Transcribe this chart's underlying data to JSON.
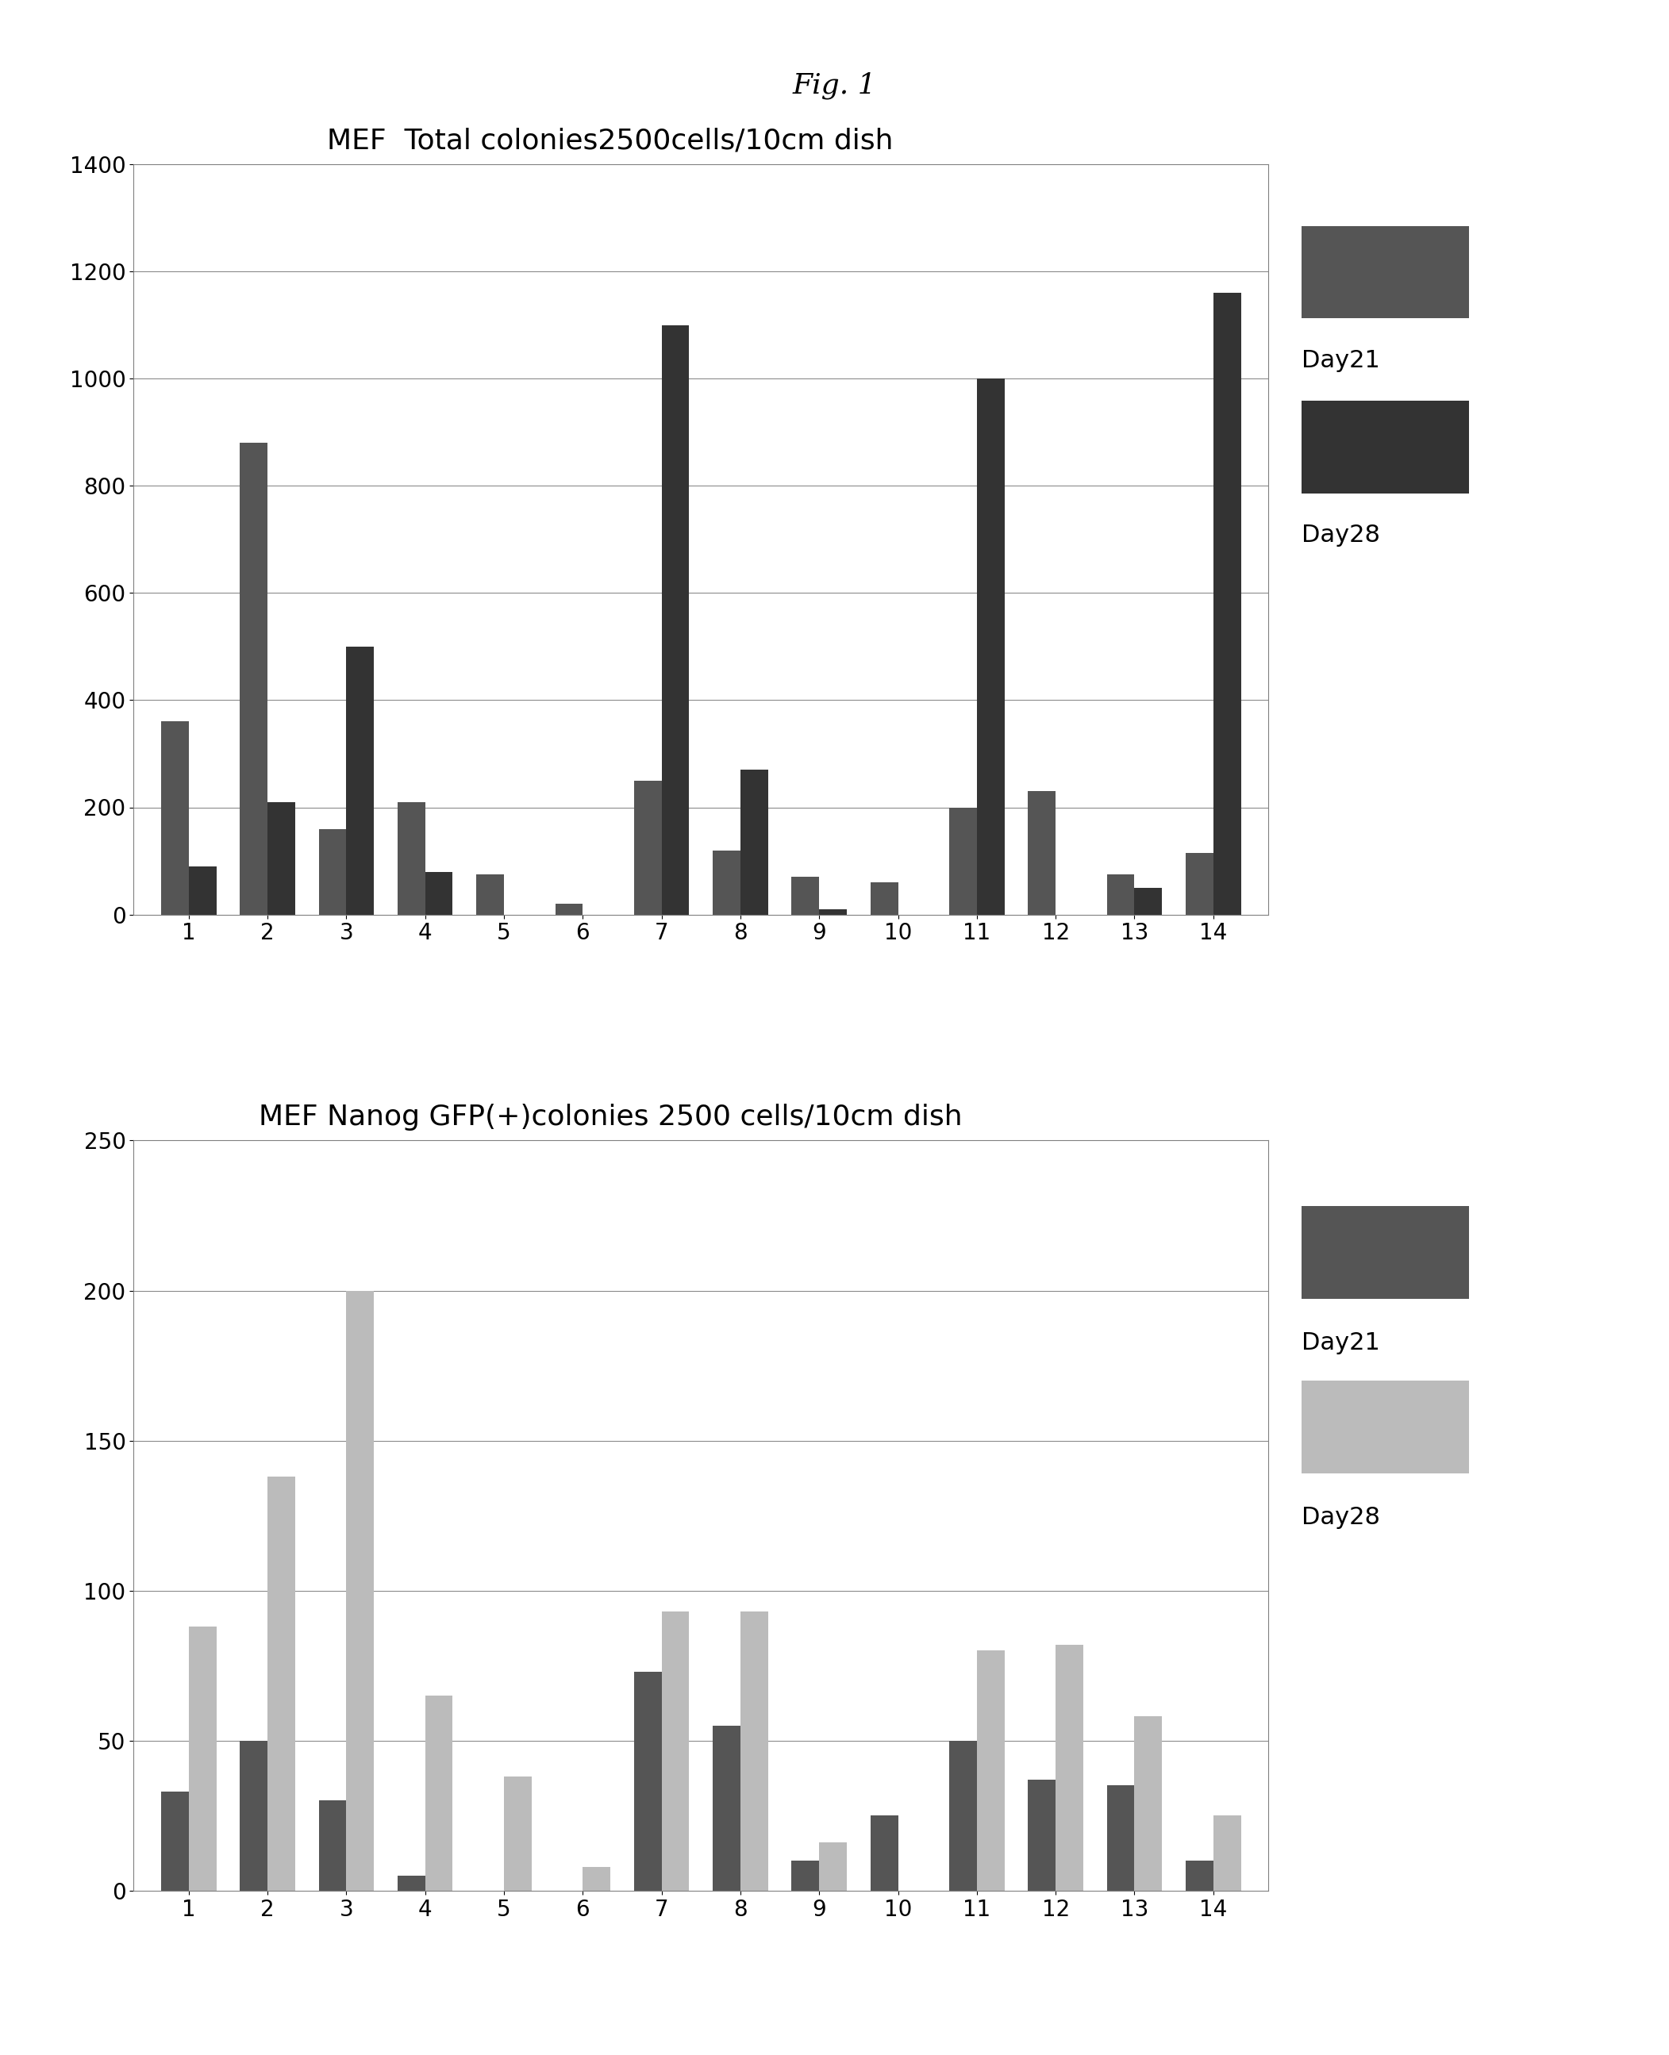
{
  "fig_title": "Fig. 1",
  "chart1": {
    "title": "MEF  Total colonies2500cells/10cm dish",
    "categories": [
      1,
      2,
      3,
      4,
      5,
      6,
      7,
      8,
      9,
      10,
      11,
      12,
      13,
      14
    ],
    "day21": [
      360,
      880,
      160,
      210,
      75,
      20,
      250,
      120,
      70,
      60,
      200,
      230,
      75,
      115
    ],
    "day28": [
      90,
      210,
      500,
      80,
      0,
      0,
      1100,
      270,
      10,
      0,
      1000,
      0,
      50,
      1160
    ],
    "ylim": [
      0,
      1400
    ],
    "yticks": [
      0,
      200,
      400,
      600,
      800,
      1000,
      1200,
      1400
    ],
    "color_day21": "#555555",
    "color_day28": "#333333"
  },
  "chart2": {
    "title": "MEF Nanog GFP(+)colonies 2500 cells/10cm dish",
    "categories": [
      1,
      2,
      3,
      4,
      5,
      6,
      7,
      8,
      9,
      10,
      11,
      12,
      13,
      14
    ],
    "day21": [
      33,
      50,
      30,
      5,
      0,
      0,
      73,
      55,
      10,
      25,
      50,
      37,
      35,
      10
    ],
    "day28": [
      88,
      138,
      200,
      65,
      38,
      8,
      93,
      93,
      16,
      0,
      80,
      82,
      58,
      25
    ],
    "ylim": [
      0,
      250
    ],
    "yticks": [
      0,
      50,
      100,
      150,
      200,
      250
    ],
    "color_day21": "#555555",
    "color_day28": "#bbbbbb"
  },
  "background_color": "#ffffff",
  "bar_width": 0.35,
  "legend_fontsize": 22,
  "tick_fontsize": 20,
  "title_fontsize": 26,
  "figtitle_fontsize": 26
}
